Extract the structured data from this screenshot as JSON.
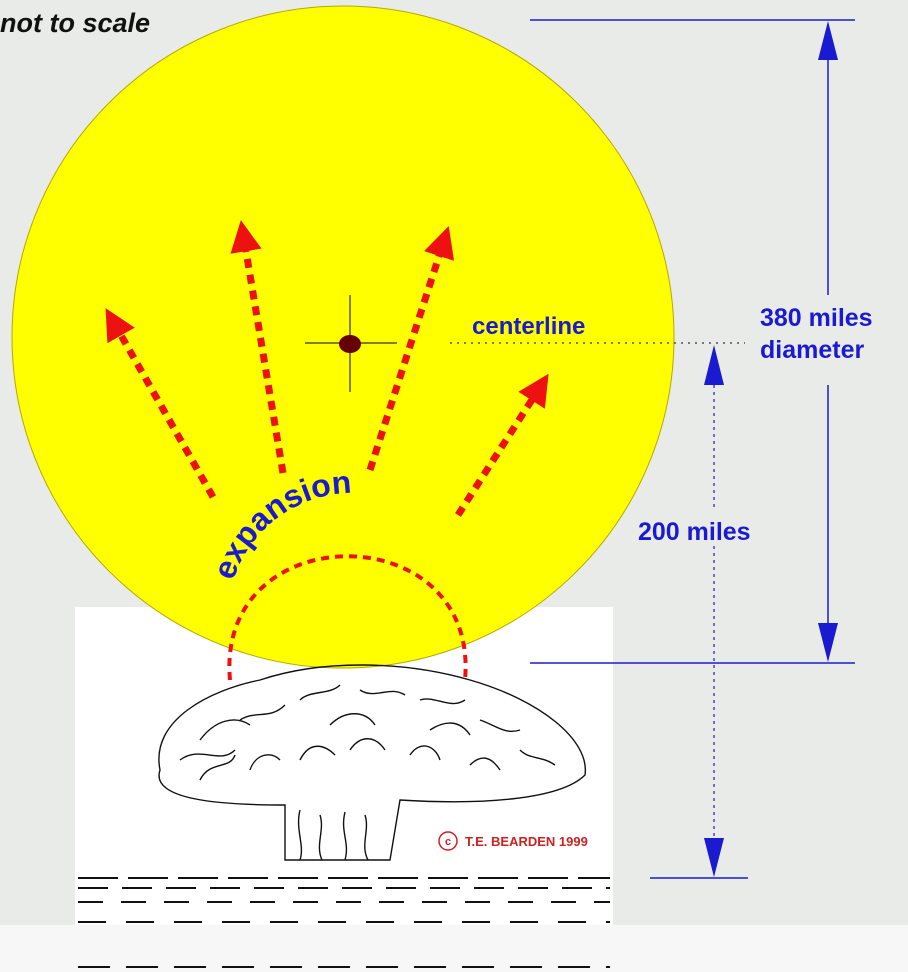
{
  "note": "not to scale",
  "labels": {
    "centerline": "centerline",
    "diameter_value": "380 miles",
    "diameter_word": "diameter",
    "height": "200 miles",
    "expansion": "expansion"
  },
  "copyright": {
    "symbol": "c",
    "text": "T.E. BEARDEN 1999"
  }
}
